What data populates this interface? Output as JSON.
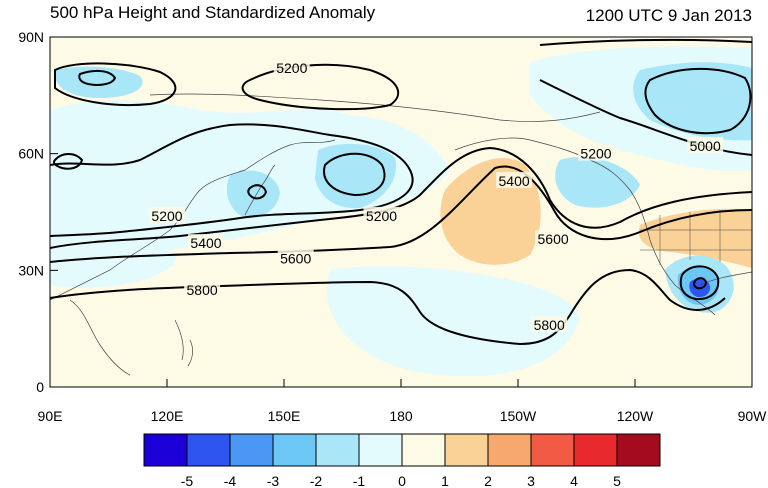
{
  "header": {
    "title": "500 hPa Height and Standardized Anomaly",
    "valid_time": "1200 UTC 9 Jan 2013"
  },
  "map": {
    "projection": "cylindrical-equidistant",
    "lon_range": [
      90,
      270
    ],
    "lat_range": [
      0,
      90
    ],
    "lat_ticks": [
      {
        "value": 90,
        "label": "90N"
      },
      {
        "value": 60,
        "label": "60N"
      },
      {
        "value": 30,
        "label": "30N"
      },
      {
        "value": 0,
        "label": "0"
      }
    ],
    "lon_ticks": [
      {
        "value": 90,
        "label": "90E"
      },
      {
        "value": 120,
        "label": "120E"
      },
      {
        "value": 150,
        "label": "150E"
      },
      {
        "value": 180,
        "label": "180"
      },
      {
        "value": 210,
        "label": "150W"
      },
      {
        "value": 240,
        "label": "120W"
      },
      {
        "value": 270,
        "label": "90W"
      }
    ],
    "contour_labels": [
      {
        "text": "5200",
        "lon": 152,
        "lat": 82
      },
      {
        "text": "5200",
        "lon": 120,
        "lat": 44
      },
      {
        "text": "5200",
        "lon": 175,
        "lat": 44
      },
      {
        "text": "5200",
        "lon": 230,
        "lat": 60
      },
      {
        "text": "5000",
        "lon": 258,
        "lat": 62
      },
      {
        "text": "5400",
        "lon": 130,
        "lat": 37
      },
      {
        "text": "5400",
        "lon": 209,
        "lat": 53
      },
      {
        "text": "5600",
        "lon": 153,
        "lat": 33
      },
      {
        "text": "5600",
        "lon": 219,
        "lat": 38
      },
      {
        "text": "5800",
        "lon": 129,
        "lat": 25
      },
      {
        "text": "5800",
        "lon": 218,
        "lat": 16
      }
    ],
    "anomaly_regions": [
      {
        "level": -1,
        "lon": 148,
        "lat": 55
      },
      {
        "level": -1,
        "lon": 200,
        "lat": 20
      },
      {
        "level": -1,
        "lon": 230,
        "lat": 72
      },
      {
        "level": 1,
        "lon": 208,
        "lat": 44
      },
      {
        "level": 1,
        "lon": 250,
        "lat": 38
      },
      {
        "level": -4,
        "lon": 254,
        "lat": 26
      }
    ]
  },
  "colorbar": {
    "colors": [
      "#1c00d8",
      "#2f55f1",
      "#4b97f3",
      "#6dc7f5",
      "#a9e6f8",
      "#e4fbfd",
      "#fdfae6",
      "#fad197",
      "#f7a86c",
      "#f15a45",
      "#e82a2f",
      "#a50b1f"
    ],
    "tick_labels": [
      "-5",
      "-4",
      "-3",
      "-2",
      "-1",
      "0",
      "1",
      "2",
      "3",
      "4",
      "5"
    ]
  }
}
